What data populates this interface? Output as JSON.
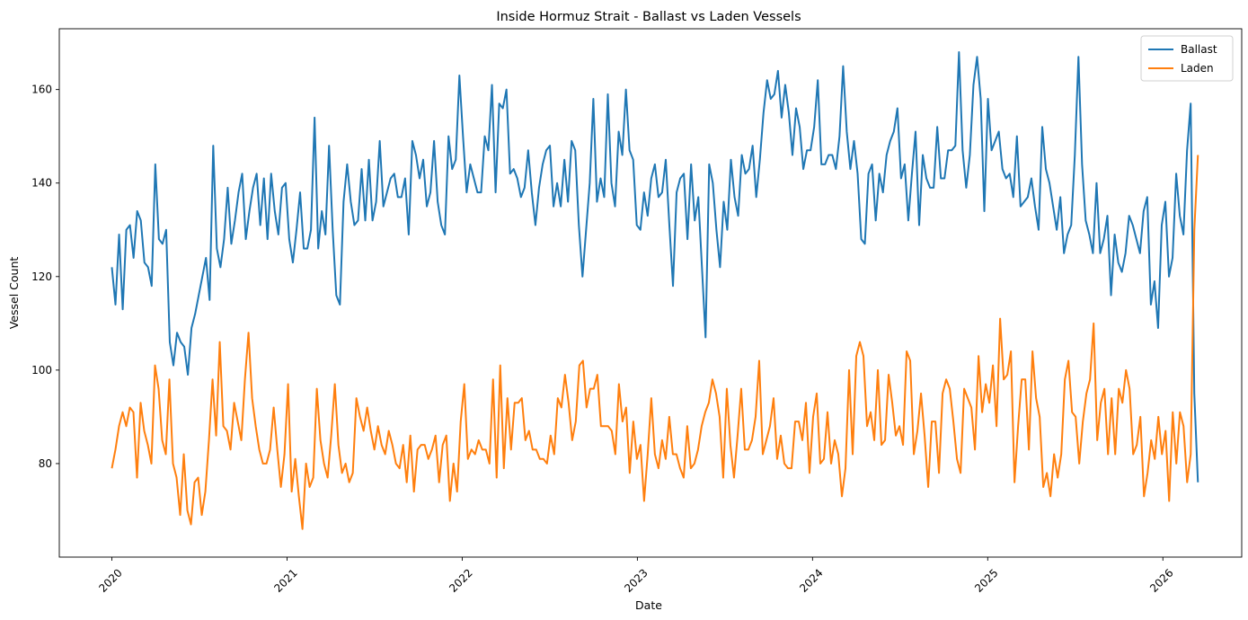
{
  "chart_data": {
    "type": "line",
    "title": "Inside Hormuz Strait - Ballast vs Laden Vessels",
    "xlabel": "Date",
    "ylabel": "Vessel Count",
    "x_ticks": [
      "2020",
      "2021",
      "2022",
      "2023",
      "2024",
      "2025",
      "2026"
    ],
    "y_ticks": [
      80,
      100,
      120,
      140,
      160
    ],
    "xlim": [
      2019.7,
      2026.45
    ],
    "ylim": [
      60,
      173
    ],
    "grid": false,
    "legend_position": "top-right",
    "x_start": 2020.0,
    "x_end": 2026.2,
    "series": [
      {
        "name": "Ballast",
        "color": "#1f77b4",
        "values": [
          122,
          114,
          129,
          113,
          130,
          131,
          124,
          134,
          132,
          123,
          122,
          118,
          144,
          128,
          127,
          130,
          106,
          101,
          108,
          106,
          105,
          99,
          109,
          112,
          116,
          120,
          124,
          115,
          148,
          126,
          122,
          128,
          139,
          127,
          132,
          138,
          142,
          128,
          134,
          139,
          142,
          131,
          141,
          128,
          142,
          134,
          129,
          139,
          140,
          128,
          123,
          130,
          138,
          126,
          126,
          130,
          154,
          126,
          134,
          129,
          148,
          130,
          116,
          114,
          136,
          144,
          136,
          131,
          132,
          143,
          132,
          145,
          132,
          136,
          149,
          135,
          138,
          141,
          142,
          137,
          137,
          141,
          129,
          149,
          146,
          141,
          145,
          135,
          138,
          149,
          136,
          131,
          129,
          150,
          143,
          145,
          163,
          150,
          138,
          144,
          141,
          138,
          138,
          150,
          147,
          161,
          138,
          157,
          156,
          160,
          142,
          143,
          141,
          137,
          139,
          147,
          138,
          131,
          139,
          144,
          147,
          148,
          135,
          140,
          135,
          145,
          136,
          149,
          147,
          131,
          120,
          130,
          140,
          158,
          136,
          141,
          137,
          159,
          140,
          135,
          151,
          146,
          160,
          147,
          145,
          131,
          130,
          138,
          133,
          141,
          144,
          137,
          138,
          145,
          131,
          118,
          138,
          141,
          142,
          128,
          144,
          132,
          137,
          122,
          107,
          144,
          140,
          130,
          122,
          136,
          130,
          145,
          137,
          133,
          146,
          142,
          143,
          148,
          137,
          145,
          155,
          162,
          158,
          159,
          164,
          154,
          161,
          155,
          146,
          156,
          152,
          143,
          147,
          147,
          152,
          162,
          144,
          144,
          146,
          146,
          143,
          150,
          165,
          151,
          143,
          149,
          142,
          128,
          127,
          142,
          144,
          132,
          142,
          138,
          146,
          149,
          151,
          156,
          141,
          144,
          132,
          142,
          151,
          131,
          146,
          141,
          139,
          139,
          152,
          141,
          141,
          147,
          147,
          148,
          168,
          147,
          139,
          146,
          161,
          167,
          158,
          134,
          158,
          147,
          149,
          151,
          143,
          141,
          142,
          137,
          150,
          135,
          136,
          137,
          141,
          135,
          130,
          152,
          143,
          140,
          135,
          130,
          137,
          125,
          129,
          131,
          146,
          167,
          144,
          132,
          129,
          125,
          140,
          125,
          128,
          133,
          116,
          129,
          123,
          121,
          125,
          133,
          131,
          128,
          125,
          134,
          137,
          114,
          119,
          109,
          131,
          136,
          120,
          124,
          142,
          133,
          129,
          147,
          157,
          95,
          76
        ]
      },
      {
        "name": "Laden",
        "color": "#ff7f0e",
        "values": [
          79,
          83,
          88,
          91,
          88,
          92,
          91,
          77,
          93,
          87,
          84,
          80,
          101,
          96,
          85,
          82,
          98,
          80,
          77,
          69,
          82,
          70,
          67,
          76,
          77,
          69,
          74,
          85,
          98,
          86,
          106,
          88,
          87,
          83,
          93,
          89,
          85,
          98,
          108,
          94,
          88,
          83,
          80,
          80,
          83,
          92,
          83,
          75,
          82,
          97,
          74,
          81,
          73,
          66,
          80,
          75,
          77,
          96,
          85,
          80,
          77,
          86,
          97,
          84,
          78,
          80,
          76,
          78,
          94,
          90,
          87,
          92,
          87,
          83,
          88,
          84,
          82,
          87,
          84,
          80,
          79,
          84,
          76,
          86,
          74,
          83,
          84,
          84,
          81,
          83,
          86,
          76,
          84,
          86,
          72,
          80,
          74,
          89,
          97,
          81,
          83,
          82,
          85,
          83,
          83,
          80,
          98,
          77,
          101,
          79,
          94,
          83,
          93,
          93,
          94,
          85,
          87,
          83,
          83,
          81,
          81,
          80,
          86,
          82,
          94,
          92,
          99,
          93,
          85,
          89,
          101,
          102,
          92,
          96,
          96,
          99,
          88,
          88,
          88,
          87,
          82,
          97,
          89,
          92,
          78,
          89,
          81,
          84,
          72,
          82,
          94,
          82,
          79,
          85,
          81,
          90,
          82,
          82,
          79,
          77,
          88,
          79,
          80,
          83,
          88,
          91,
          93,
          98,
          95,
          90,
          77,
          96,
          84,
          77,
          86,
          96,
          83,
          83,
          85,
          90,
          102,
          82,
          85,
          88,
          94,
          81,
          86,
          80,
          79,
          79,
          89,
          89,
          85,
          93,
          78,
          90,
          95,
          80,
          81,
          91,
          80,
          85,
          82,
          73,
          79,
          100,
          82,
          103,
          106,
          103,
          88,
          91,
          85,
          100,
          84,
          85,
          99,
          93,
          86,
          88,
          84,
          104,
          102,
          82,
          87,
          95,
          86,
          75,
          89,
          89,
          78,
          95,
          98,
          96,
          89,
          81,
          78,
          96,
          94,
          92,
          83,
          103,
          91,
          97,
          93,
          101,
          88,
          111,
          98,
          99,
          104,
          76,
          88,
          98,
          98,
          83,
          104,
          94,
          90,
          75,
          78,
          73,
          82,
          77,
          82,
          98,
          102,
          91,
          90,
          80,
          89,
          95,
          98,
          110,
          85,
          93,
          96,
          82,
          94,
          82,
          96,
          93,
          100,
          96,
          82,
          84,
          90,
          73,
          78,
          85,
          81,
          90,
          82,
          87,
          72,
          91,
          80,
          91,
          88,
          76,
          82,
          130,
          146
        ]
      }
    ]
  }
}
